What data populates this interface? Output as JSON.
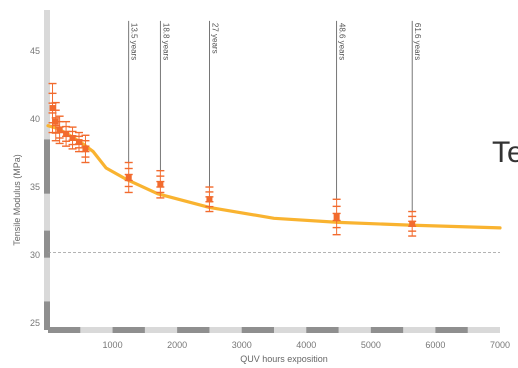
{
  "chart_data": {
    "type": "line",
    "title": "",
    "xlabel": "QUV hours exposition",
    "ylabel": "Tensile Modulus (MPa)",
    "xlim": [
      0,
      7000
    ],
    "ylim": [
      24.5,
      48
    ],
    "x_ticks": [
      {
        "value": 1000,
        "label": "1000"
      },
      {
        "value": 2000,
        "label": "2000"
      },
      {
        "value": 3000,
        "label": "3000"
      },
      {
        "value": 4000,
        "label": "4000"
      },
      {
        "value": 5000,
        "label": "5000"
      },
      {
        "value": 6000,
        "label": "6000"
      },
      {
        "value": 7000,
        "label": "7000"
      }
    ],
    "y_ticks": [
      {
        "value": 25,
        "label": "25"
      },
      {
        "value": 30,
        "label": "30"
      },
      {
        "value": 35,
        "label": "35"
      },
      {
        "value": 40,
        "label": "40"
      },
      {
        "value": 45,
        "label": "45"
      }
    ],
    "reference_line": {
      "y": 30.2,
      "style": "dashed"
    },
    "series": [
      {
        "type": "line",
        "color": "#f9b330",
        "x": [
          0,
          150,
          300,
          500,
          700,
          900,
          1200,
          1700,
          2500,
          3500,
          4500,
          5600,
          7000
        ],
        "y": [
          39.5,
          39.3,
          38.9,
          38.3,
          37.6,
          36.4,
          35.6,
          34.5,
          33.5,
          32.7,
          32.4,
          32.2,
          32.0
        ]
      },
      {
        "type": "scatter",
        "color": "#f26b2e",
        "marker": "square-with-error-bars",
        "points": [
          {
            "x": 70,
            "y": 40.8,
            "err": 1.8
          },
          {
            "x": 120,
            "y": 39.8,
            "err": 1.4
          },
          {
            "x": 180,
            "y": 39.2,
            "err": 1.0
          },
          {
            "x": 280,
            "y": 38.9,
            "err": 0.9
          },
          {
            "x": 380,
            "y": 38.6,
            "err": 0.8
          },
          {
            "x": 480,
            "y": 38.3,
            "err": 0.7
          },
          {
            "x": 580,
            "y": 37.8,
            "err": 1.0
          },
          {
            "x": 1250,
            "y": 35.7,
            "err": 1.1
          },
          {
            "x": 1740,
            "y": 35.2,
            "err": 1.0
          },
          {
            "x": 2500,
            "y": 34.1,
            "err": 0.9
          },
          {
            "x": 4470,
            "y": 32.8,
            "err": 1.3
          },
          {
            "x": 5640,
            "y": 32.3,
            "err": 0.9
          }
        ]
      }
    ],
    "annotations": [
      {
        "x": 1250,
        "text": "13.5 years"
      },
      {
        "x": 1740,
        "text": "18.8 years"
      },
      {
        "x": 2500,
        "text": "27 years"
      },
      {
        "x": 4470,
        "text": "48.6 years"
      },
      {
        "x": 5640,
        "text": "61.6 years"
      }
    ],
    "overlay_text": "Te",
    "grid": false
  },
  "colors": {
    "axis_band_light": "#d9d9d9",
    "axis_band_dark": "#8f8f8f",
    "reference_line": "#9a9a9a",
    "annotation_line": "#555555"
  }
}
